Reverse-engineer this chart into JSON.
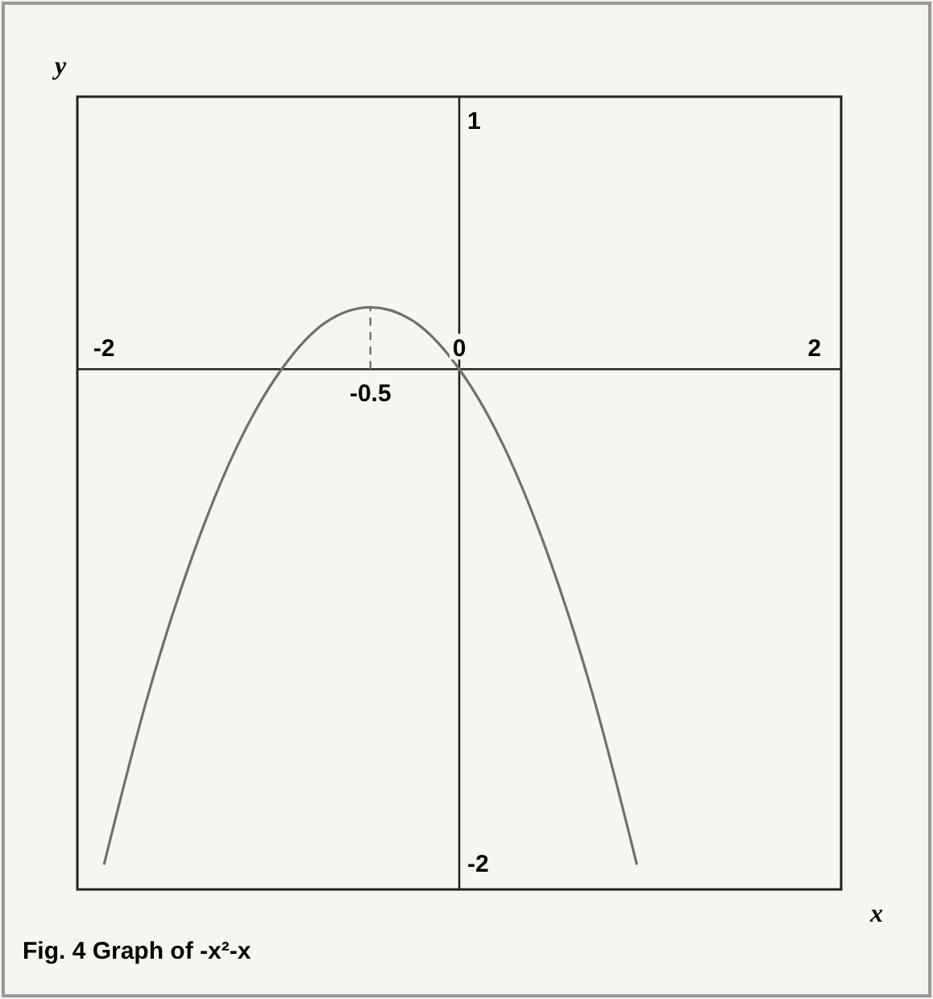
{
  "chart_data": {
    "type": "line",
    "title": "Fig. 4 Graph of -x²-x",
    "xlabel": "x",
    "ylabel": "y",
    "x": [
      -2,
      -1.75,
      -1.5,
      -1.25,
      -1,
      -0.75,
      -0.5,
      -0.25,
      0,
      0.25,
      0.5,
      0.75,
      1
    ],
    "series": [
      {
        "color": "#707070",
        "values": [
          -2,
          -1.31,
          -0.75,
          -0.31,
          0,
          0.19,
          0.25,
          0.19,
          0,
          -0.31,
          -0.75,
          -1.31,
          -2
        ]
      },
      {
        "color": "#707070",
        "x": [
          -0.5,
          -0.5
        ],
        "values": [
          0,
          0.25
        ],
        "line_style": "dashed"
      }
    ],
    "xlim": [
      -2.15,
      2.15
    ],
    "ylim": [
      -2.1,
      1.1
    ],
    "xticks": [
      -2,
      0,
      2
    ],
    "yticks": [
      -2,
      1
    ],
    "annotations": [
      "-0.5"
    ],
    "grid": false,
    "marker": "none",
    "line_style": "solid"
  }
}
